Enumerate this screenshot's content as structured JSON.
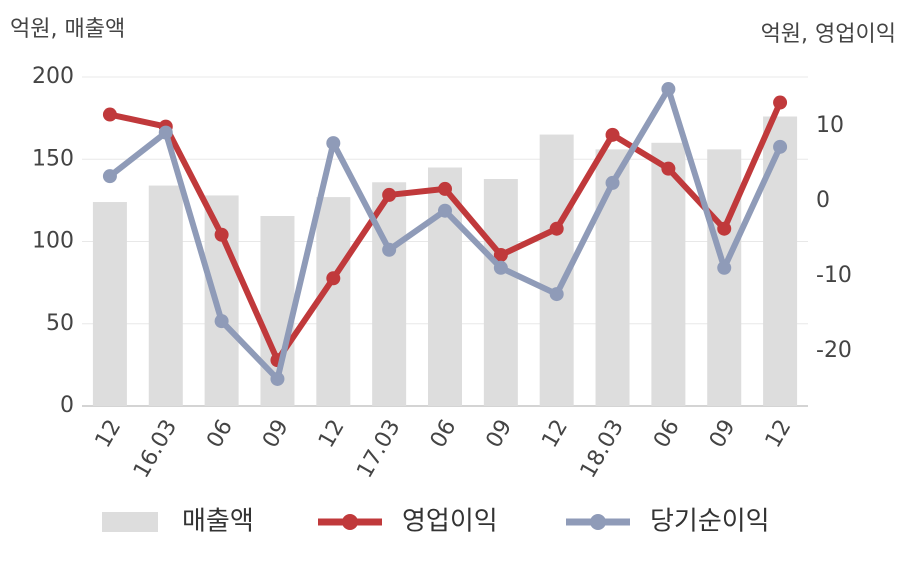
{
  "chart_data": {
    "type": "bar_line",
    "y_label": "억원, 매출액",
    "y2_label": "억원, 영업이익",
    "categories": [
      "12",
      "16.03",
      "06",
      "09",
      "12",
      "17.03",
      "06",
      "09",
      "12",
      "18.03",
      "06",
      "09",
      "12"
    ],
    "series": [
      {
        "name": "매출액",
        "type": "bar",
        "color": "#dddddd",
        "values": [
          124,
          134,
          128,
          115.5,
          127,
          136,
          145,
          138,
          165,
          156,
          160,
          156,
          176
        ]
      },
      {
        "name": "영업이익",
        "type": "line",
        "axis": "y2",
        "color": "#c0393b",
        "values": [
          11.5,
          9.9,
          -4.5,
          -21.2,
          -10.3,
          0.8,
          1.6,
          -7.2,
          -3.7,
          8.8,
          4.3,
          -3.7,
          13.1
        ]
      },
      {
        "name": "당기순이익",
        "type": "line",
        "axis": "y2",
        "color": "#8f9bb8",
        "values": [
          3.3,
          9.1,
          -16,
          -23.7,
          7.7,
          -6.5,
          -1.3,
          -8.9,
          -12.4,
          2.4,
          14.9,
          -8.9,
          7.2
        ]
      }
    ],
    "ylim": [
      0,
      200
    ],
    "yticks": [
      0,
      50,
      100,
      150,
      200
    ],
    "y2lim": [
      -27.3,
      16.5
    ],
    "y2ticks": [
      -20,
      -10,
      0,
      10
    ],
    "grid": true
  }
}
